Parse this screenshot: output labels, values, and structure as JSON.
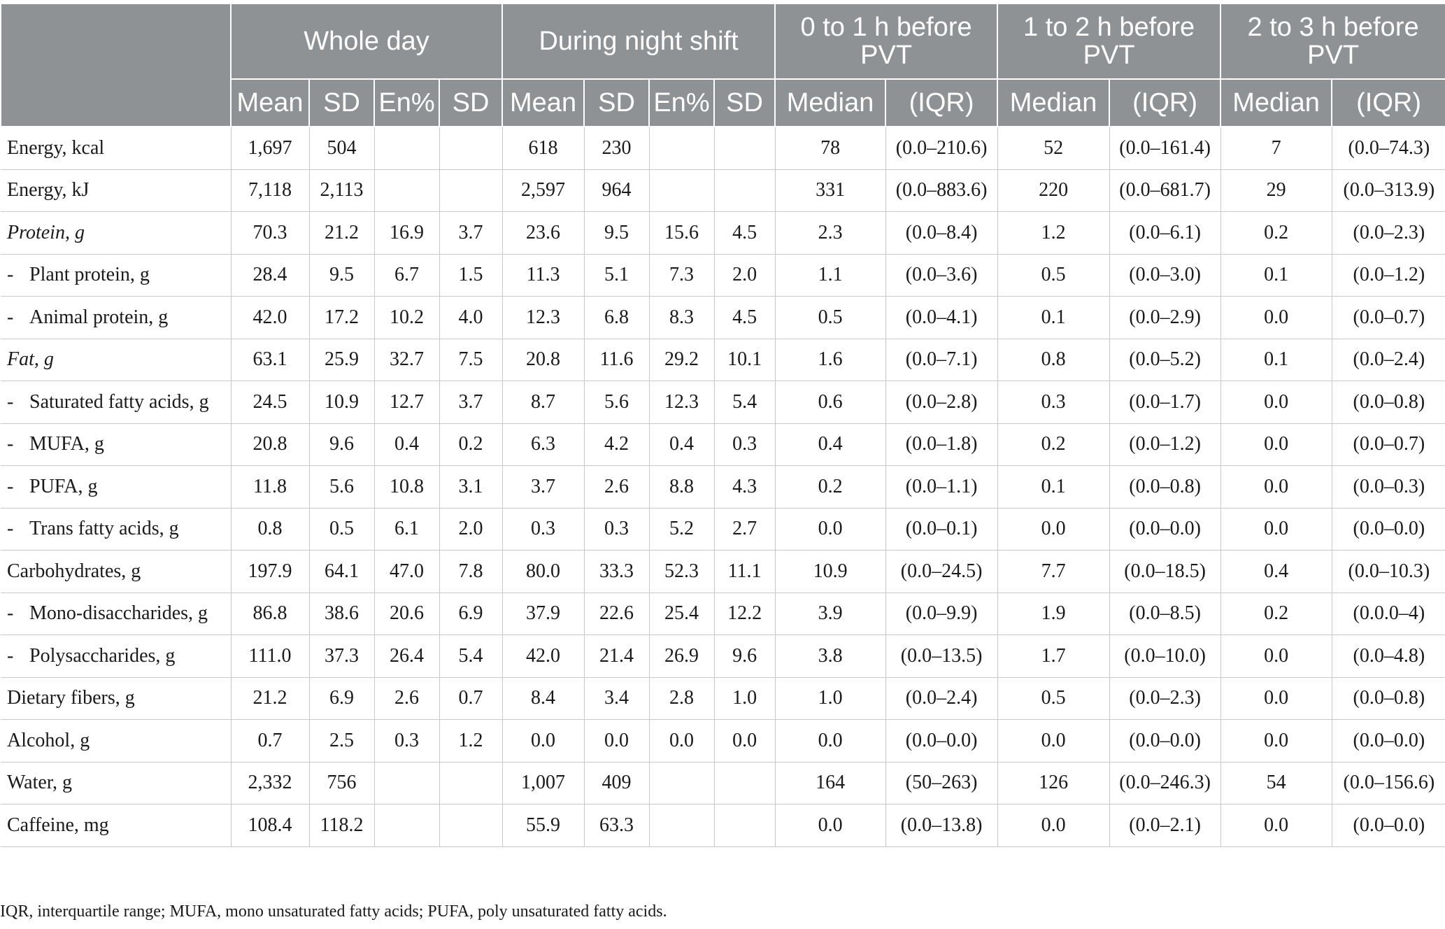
{
  "table": {
    "group_headers": [
      "Whole day",
      "During night shift",
      "0 to 1 h before PVT",
      "1 to 2 h before PVT",
      "2 to 3 h before PVT"
    ],
    "sub_headers": [
      "Mean",
      "SD",
      "En%",
      "SD",
      "Mean",
      "SD",
      "En%",
      "SD",
      "Median",
      "(IQR)",
      "Median",
      "(IQR)",
      "Median",
      "(IQR)"
    ],
    "rows": [
      {
        "label": "Energy, kcal",
        "sub": false,
        "italic": false,
        "values": [
          "1,697",
          "504",
          "",
          "",
          "618",
          "230",
          "",
          "",
          "78",
          "(0.0–210.6)",
          "52",
          "(0.0–161.4)",
          "7",
          "(0.0–74.3)"
        ]
      },
      {
        "label": "Energy, kJ",
        "sub": false,
        "italic": false,
        "values": [
          "7,118",
          "2,113",
          "",
          "",
          "2,597",
          "964",
          "",
          "",
          "331",
          "(0.0–883.6)",
          "220",
          "(0.0–681.7)",
          "29",
          "(0.0–313.9)"
        ]
      },
      {
        "label": "Protein, g",
        "sub": false,
        "italic": true,
        "values": [
          "70.3",
          "21.2",
          "16.9",
          "3.7",
          "23.6",
          "9.5",
          "15.6",
          "4.5",
          "2.3",
          "(0.0–8.4)",
          "1.2",
          "(0.0–6.1)",
          "0.2",
          "(0.0–2.3)"
        ]
      },
      {
        "label": "Plant protein, g",
        "sub": true,
        "italic": false,
        "values": [
          "28.4",
          "9.5",
          "6.7",
          "1.5",
          "11.3",
          "5.1",
          "7.3",
          "2.0",
          "1.1",
          "(0.0–3.6)",
          "0.5",
          "(0.0–3.0)",
          "0.1",
          "(0.0–1.2)"
        ]
      },
      {
        "label": "Animal protein, g",
        "sub": true,
        "italic": false,
        "values": [
          "42.0",
          "17.2",
          "10.2",
          "4.0",
          "12.3",
          "6.8",
          "8.3",
          "4.5",
          "0.5",
          "(0.0–4.1)",
          "0.1",
          "(0.0–2.9)",
          "0.0",
          "(0.0–0.7)"
        ]
      },
      {
        "label": "Fat, g",
        "sub": false,
        "italic": true,
        "values": [
          "63.1",
          "25.9",
          "32.7",
          "7.5",
          "20.8",
          "11.6",
          "29.2",
          "10.1",
          "1.6",
          "(0.0–7.1)",
          "0.8",
          "(0.0–5.2)",
          "0.1",
          "(0.0–2.4)"
        ]
      },
      {
        "label": "Saturated fatty acids, g",
        "sub": true,
        "italic": false,
        "values": [
          "24.5",
          "10.9",
          "12.7",
          "3.7",
          "8.7",
          "5.6",
          "12.3",
          "5.4",
          "0.6",
          "(0.0–2.8)",
          "0.3",
          "(0.0–1.7)",
          "0.0",
          "(0.0–0.8)"
        ]
      },
      {
        "label": "MUFA, g",
        "sub": true,
        "italic": false,
        "values": [
          "20.8",
          "9.6",
          "0.4",
          "0.2",
          "6.3",
          "4.2",
          "0.4",
          "0.3",
          "0.4",
          "(0.0–1.8)",
          "0.2",
          "(0.0–1.2)",
          "0.0",
          "(0.0–0.7)"
        ]
      },
      {
        "label": "PUFA, g",
        "sub": true,
        "italic": false,
        "values": [
          "11.8",
          "5.6",
          "10.8",
          "3.1",
          "3.7",
          "2.6",
          "8.8",
          "4.3",
          "0.2",
          "(0.0–1.1)",
          "0.1",
          "(0.0–0.8)",
          "0.0",
          "(0.0–0.3)"
        ]
      },
      {
        "label": "Trans fatty acids, g",
        "sub": true,
        "italic": false,
        "values": [
          "0.8",
          "0.5",
          "6.1",
          "2.0",
          "0.3",
          "0.3",
          "5.2",
          "2.7",
          "0.0",
          "(0.0–0.1)",
          "0.0",
          "(0.0–0.0)",
          "0.0",
          "(0.0–0.0)"
        ]
      },
      {
        "label": "Carbohydrates, g",
        "sub": false,
        "italic": false,
        "values": [
          "197.9",
          "64.1",
          "47.0",
          "7.8",
          "80.0",
          "33.3",
          "52.3",
          "11.1",
          "10.9",
          "(0.0–24.5)",
          "7.7",
          "(0.0–18.5)",
          "0.4",
          "(0.0–10.3)"
        ]
      },
      {
        "label": "Mono-disaccharides, g",
        "sub": true,
        "italic": false,
        "values": [
          "86.8",
          "38.6",
          "20.6",
          "6.9",
          "37.9",
          "22.6",
          "25.4",
          "12.2",
          "3.9",
          "(0.0–9.9)",
          "1.9",
          "(0.0–8.5)",
          "0.2",
          "(0.0.0–4)"
        ]
      },
      {
        "label": "Polysaccharides, g",
        "sub": true,
        "italic": false,
        "values": [
          "111.0",
          "37.3",
          "26.4",
          "5.4",
          "42.0",
          "21.4",
          "26.9",
          "9.6",
          "3.8",
          "(0.0–13.5)",
          "1.7",
          "(0.0–10.0)",
          "0.0",
          "(0.0–4.8)"
        ]
      },
      {
        "label": "Dietary fibers, g",
        "sub": false,
        "italic": false,
        "values": [
          "21.2",
          "6.9",
          "2.6",
          "0.7",
          "8.4",
          "3.4",
          "2.8",
          "1.0",
          "1.0",
          "(0.0–2.4)",
          "0.5",
          "(0.0–2.3)",
          "0.0",
          "(0.0–0.8)"
        ]
      },
      {
        "label": "Alcohol, g",
        "sub": false,
        "italic": false,
        "values": [
          "0.7",
          "2.5",
          "0.3",
          "1.2",
          "0.0",
          "0.0",
          "0.0",
          "0.0",
          "0.0",
          "(0.0–0.0)",
          "0.0",
          "(0.0–0.0)",
          "0.0",
          "(0.0–0.0)"
        ]
      },
      {
        "label": "Water, g",
        "sub": false,
        "italic": false,
        "values": [
          "2,332",
          "756",
          "",
          "",
          "1,007",
          "409",
          "",
          "",
          "164",
          "(50–263)",
          "126",
          "(0.0–246.3)",
          "54",
          "(0.0–156.6)"
        ]
      },
      {
        "label": "Caffeine, mg",
        "sub": false,
        "italic": false,
        "values": [
          "108.4",
          "118.2",
          "",
          "",
          "55.9",
          "63.3",
          "",
          "",
          "0.0",
          "(0.0–13.8)",
          "0.0",
          "(0.0–2.1)",
          "0.0",
          "(0.0–0.0)"
        ]
      }
    ],
    "sub_marker": "-"
  },
  "footnote": "IQR, interquartile range; MUFA, mono unsaturated fatty acids; PUFA, poly unsaturated fatty acids."
}
